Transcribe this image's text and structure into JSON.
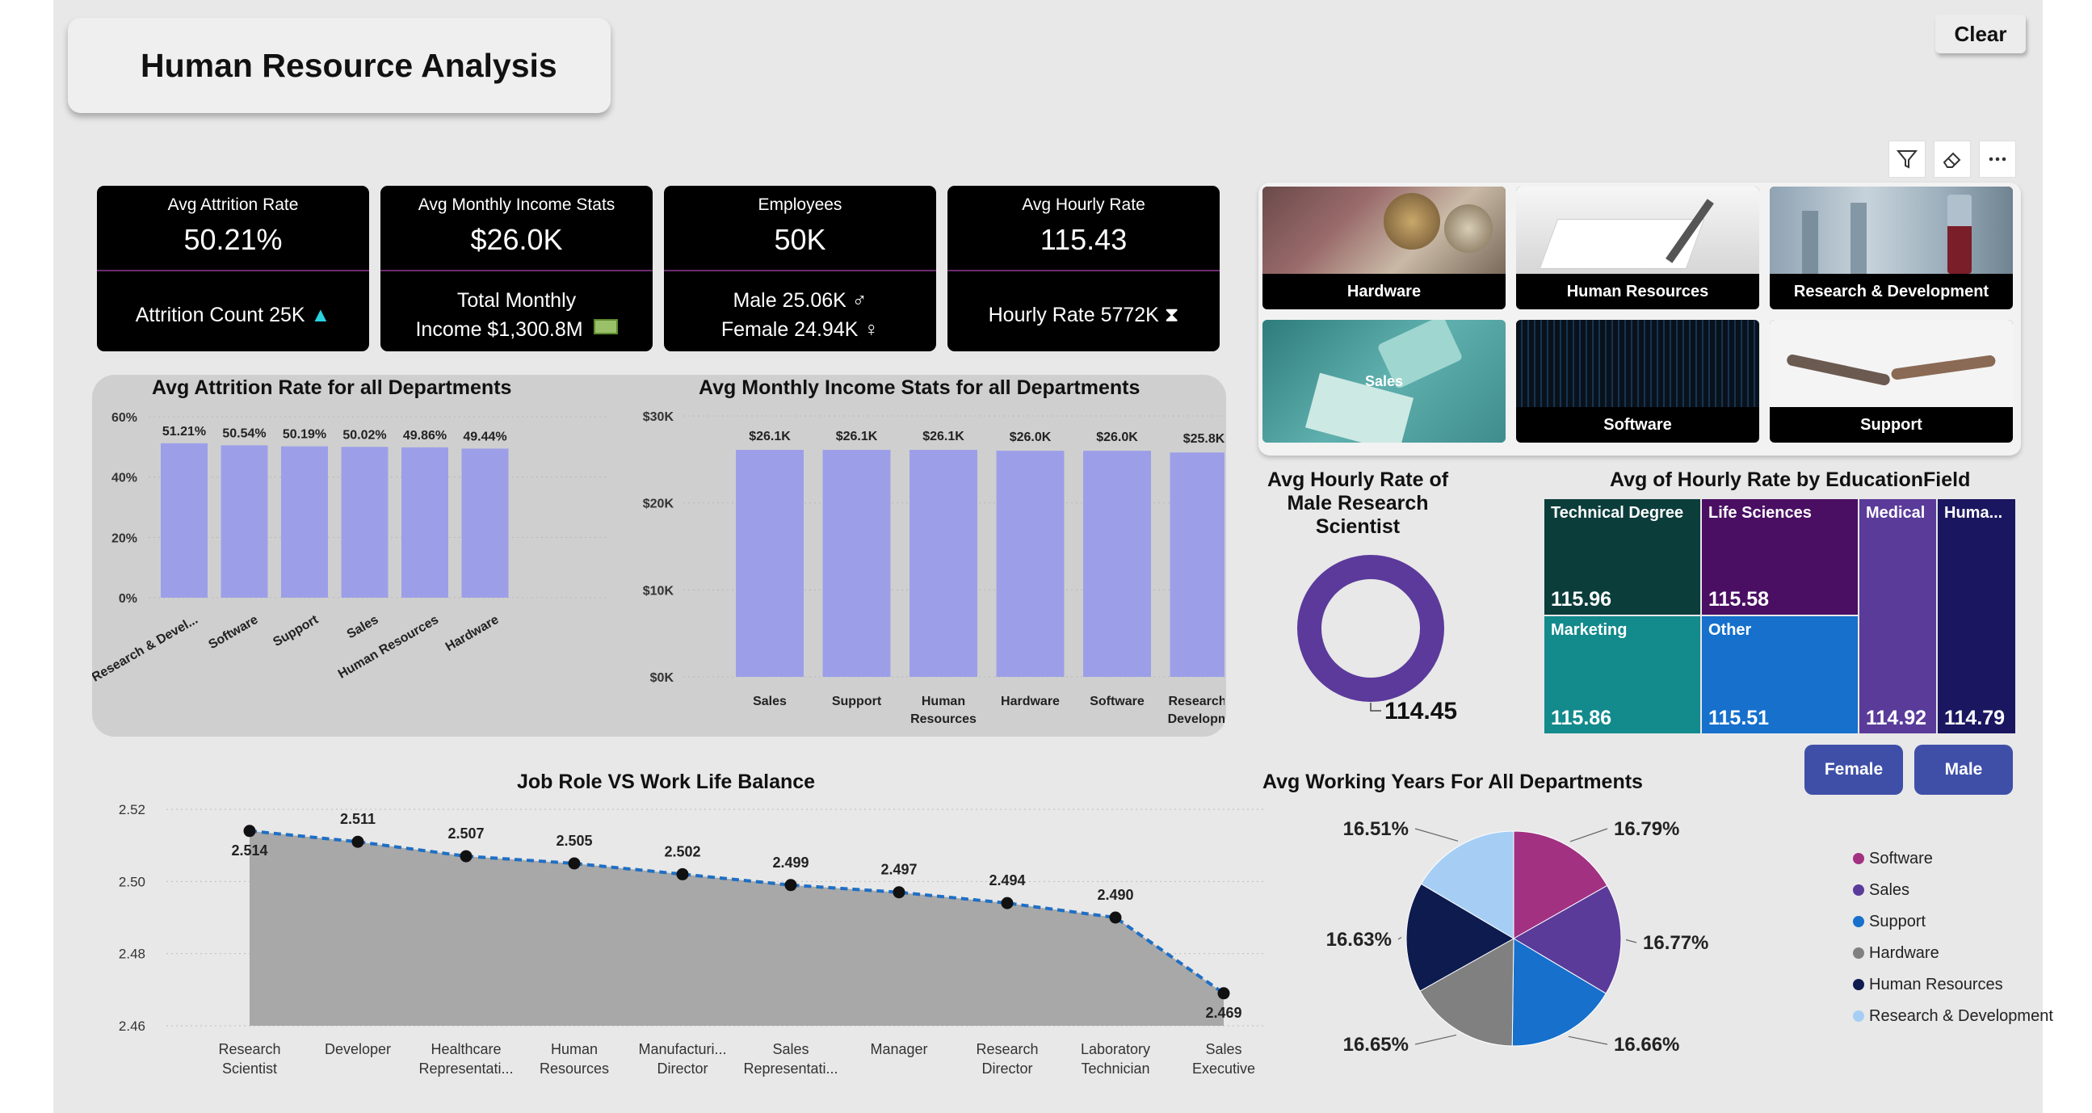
{
  "report": {
    "title": "Human Resource Analysis",
    "clear_label": "Clear"
  },
  "kpis": [
    {
      "label": "Avg Attrition Rate",
      "value": "50.21%",
      "sub1": "Attrition Count 25K",
      "icon": "up-triangle-icon"
    },
    {
      "label": "Avg Monthly Income Stats",
      "value": "$26.0K",
      "sub1": "Total Monthly",
      "sub2": "Income $1,300.8M",
      "icon": "money-icon"
    },
    {
      "label": "Employees",
      "value": "50K",
      "sub1": "Male 25.06K ♂",
      "sub2": "Female 24.94K ♀"
    },
    {
      "label": "Avg Hourly Rate",
      "value": "115.43",
      "sub1": "Hourly Rate 5772K",
      "icon": "hourglass-icon"
    }
  ],
  "department_tiles": [
    {
      "label": "Hardware"
    },
    {
      "label": "Human Resources"
    },
    {
      "label": "Research & Development"
    },
    {
      "label": "Sales"
    },
    {
      "label": "Software"
    },
    {
      "label": "Support"
    }
  ],
  "visual_header_icons": [
    "filter-icon",
    "eraser-icon",
    "more-options-icon"
  ],
  "gender_buttons": [
    {
      "label": "Female"
    },
    {
      "label": "Male"
    }
  ],
  "chart_data": [
    {
      "type": "bar",
      "title": "Avg Attrition Rate for all Departments",
      "categories": [
        "Research & Devel...",
        "Software",
        "Support",
        "Sales",
        "Human Resources",
        "Hardware"
      ],
      "values": [
        51.21,
        50.54,
        50.19,
        50.02,
        49.86,
        49.44
      ],
      "data_labels": [
        "51.21%",
        "50.54%",
        "50.19%",
        "50.02%",
        "49.86%",
        "49.44%"
      ],
      "ylim": [
        0,
        60
      ],
      "yticks": [
        "0%",
        "20%",
        "40%",
        "60%"
      ],
      "grid": true,
      "color": "#9c9fe8"
    },
    {
      "type": "bar",
      "title": "Avg Monthly Income Stats for all Departments",
      "categories": [
        [
          "Sales"
        ],
        [
          "Support"
        ],
        [
          "Human",
          "Resources"
        ],
        [
          "Hardware"
        ],
        [
          "Software"
        ],
        [
          "Research &",
          "Developm..."
        ]
      ],
      "values": [
        26.1,
        26.1,
        26.1,
        26.0,
        26.0,
        25.8
      ],
      "data_labels": [
        "$26.1K",
        "$26.1K",
        "$26.1K",
        "$26.0K",
        "$26.0K",
        "$25.8K"
      ],
      "ylim": [
        0,
        30
      ],
      "yticks": [
        "$0K",
        "$10K",
        "$20K",
        "$30K"
      ],
      "grid": true,
      "color": "#9c9fe8"
    },
    {
      "type": "area",
      "title": "Job Role VS Work Life Balance",
      "categories": [
        [
          "Research",
          "Scientist"
        ],
        [
          "Developer"
        ],
        [
          "Healthcare",
          "Representati..."
        ],
        [
          "Human",
          "Resources"
        ],
        [
          "Manufacturi...",
          "Director"
        ],
        [
          "Sales",
          "Representati..."
        ],
        [
          "Manager"
        ],
        [
          "Research",
          "Director"
        ],
        [
          "Laboratory",
          "Technician"
        ],
        [
          "Sales",
          "Executive"
        ]
      ],
      "values": [
        2.514,
        2.511,
        2.507,
        2.505,
        2.502,
        2.499,
        2.497,
        2.494,
        2.49,
        2.469
      ],
      "data_labels": [
        "2.514",
        "2.511",
        "2.507",
        "2.505",
        "2.502",
        "2.499",
        "2.497",
        "2.494",
        "2.490",
        "2.469"
      ],
      "ylim": [
        2.46,
        2.52
      ],
      "yticks": [
        "2.46",
        "2.48",
        "2.50",
        "2.52"
      ],
      "grid": true
    },
    {
      "type": "pie",
      "title": "Avg Hourly Rate of Male Research Scientist",
      "subtype": "donut",
      "values": [
        114.45
      ],
      "data_labels": [
        "114.45"
      ],
      "color": "#5b3a9b"
    },
    {
      "type": "heatmap",
      "subtype": "treemap",
      "title": "Avg of Hourly Rate by EducationField",
      "items": [
        {
          "label": "Technical Degree",
          "value": "115.96",
          "color": "#0b3d3b"
        },
        {
          "label": "Life Sciences",
          "value": "115.58",
          "color": "#4a0f63"
        },
        {
          "label": "Marketing",
          "value": "115.86",
          "color": "#138a8c"
        },
        {
          "label": "Other",
          "value": "115.51",
          "color": "#1670cc"
        },
        {
          "label": "Medical",
          "value": "114.92",
          "color": "#5a3b9a"
        },
        {
          "label": "Huma...",
          "value": "114.79",
          "color": "#1a1660"
        }
      ]
    },
    {
      "type": "pie",
      "title": "Avg Working Years For All Departments",
      "series": [
        {
          "name": "Software",
          "value": 16.79,
          "label": "16.79%",
          "color": "#a23182"
        },
        {
          "name": "Sales",
          "value": 16.77,
          "label": "16.77%",
          "color": "#5a3b9a"
        },
        {
          "name": "Support",
          "value": 16.66,
          "label": "16.66%",
          "color": "#1670cc"
        },
        {
          "name": "Hardware",
          "value": 16.65,
          "label": "16.65%",
          "color": "#808080"
        },
        {
          "name": "Human Resources",
          "value": 16.63,
          "label": "16.63%",
          "color": "#0d1b4f"
        },
        {
          "name": "Research & Development",
          "value": 16.51,
          "label": "16.51%",
          "color": "#a6cef5"
        }
      ],
      "legend": "right"
    }
  ]
}
